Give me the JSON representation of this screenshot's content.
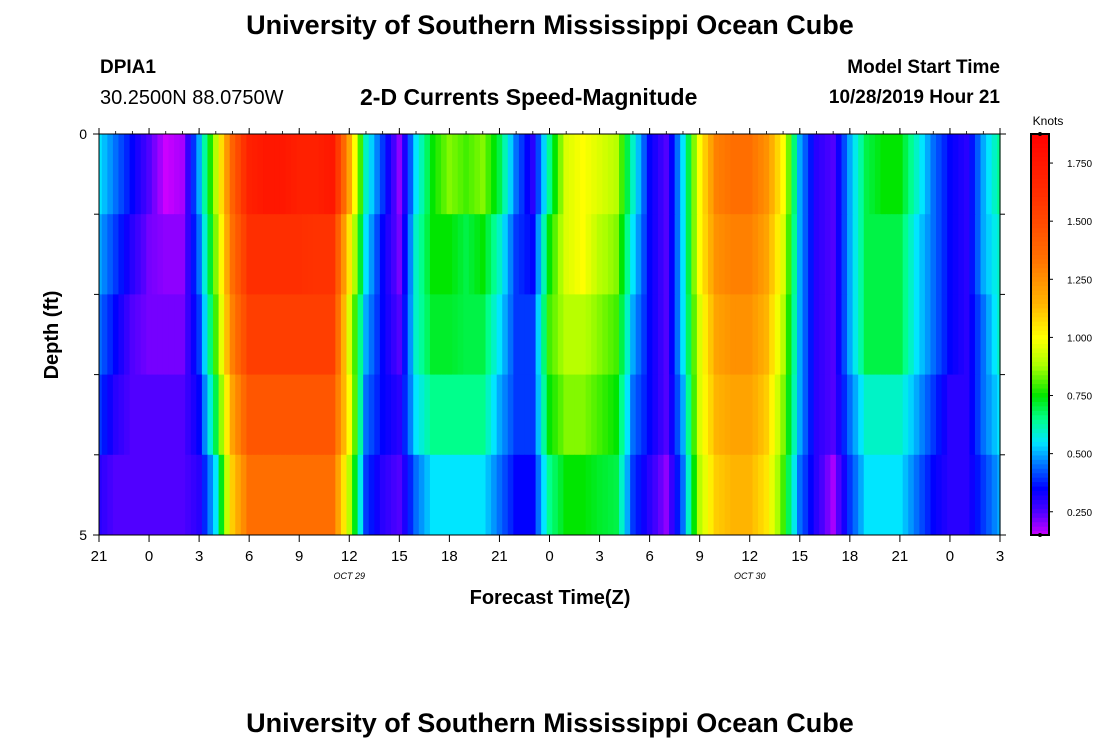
{
  "header": {
    "title": "University of Southern Mississippi Ocean Cube",
    "station_id": "DPIA1",
    "coordinates": "30.2500N 88.0750W",
    "subtitle": "2-D Currents Speed-Magnitude",
    "model_start_label": "Model Start Time",
    "model_start_value": "10/28/2019 Hour 21"
  },
  "footer": {
    "title": "University of Southern Mississippi Ocean Cube"
  },
  "chart_data": {
    "type": "heatmap",
    "xlabel": "Forecast Time(Z)",
    "ylabel": "Depth (ft)",
    "x_hours": [
      0,
      1,
      2,
      3,
      4,
      5,
      6,
      7,
      8,
      9,
      10,
      11,
      12,
      13,
      14,
      15,
      16,
      17,
      18,
      19,
      20,
      21,
      22,
      23,
      24,
      25,
      26,
      27,
      28,
      29,
      30,
      31,
      32,
      33,
      34,
      35,
      36,
      37,
      38,
      39,
      40,
      41,
      42,
      43,
      44,
      45,
      46,
      47,
      48,
      49,
      50,
      51,
      52,
      53,
      54
    ],
    "x_range": [
      0,
      54
    ],
    "x_ticks": [
      {
        "hour": 0,
        "label": "21"
      },
      {
        "hour": 3,
        "label": "0"
      },
      {
        "hour": 6,
        "label": "3"
      },
      {
        "hour": 9,
        "label": "6"
      },
      {
        "hour": 12,
        "label": "9"
      },
      {
        "hour": 15,
        "label": "12"
      },
      {
        "hour": 18,
        "label": "15"
      },
      {
        "hour": 21,
        "label": "18"
      },
      {
        "hour": 24,
        "label": "21"
      },
      {
        "hour": 27,
        "label": "0"
      },
      {
        "hour": 30,
        "label": "3"
      },
      {
        "hour": 33,
        "label": "6"
      },
      {
        "hour": 36,
        "label": "9"
      },
      {
        "hour": 39,
        "label": "12"
      },
      {
        "hour": 42,
        "label": "15"
      },
      {
        "hour": 45,
        "label": "18"
      },
      {
        "hour": 48,
        "label": "21"
      },
      {
        "hour": 51,
        "label": "0"
      },
      {
        "hour": 54,
        "label": "3"
      }
    ],
    "date_labels": [
      {
        "hour": 15,
        "label": "OCT 29"
      },
      {
        "hour": 39,
        "label": "OCT 30"
      }
    ],
    "depth_range": [
      0,
      5
    ],
    "depth_ticks": [
      {
        "depth": 0,
        "label": "0"
      },
      {
        "depth": 5,
        "label": "5"
      }
    ],
    "depth_minor_ticks": [
      1,
      2,
      3,
      4
    ],
    "depth_rows": [
      0,
      1,
      2,
      3,
      4
    ],
    "speed_knots": [
      [
        0.55,
        0.45,
        0.35,
        0.25,
        0.15,
        0.18,
        0.5,
        0.9,
        1.4,
        1.7,
        1.75,
        1.75,
        1.7,
        1.7,
        1.75,
        1.2,
        0.6,
        0.4,
        0.2,
        0.55,
        0.75,
        0.85,
        0.8,
        0.85,
        0.7,
        0.45,
        0.3,
        0.65,
        0.95,
        1.0,
        0.95,
        0.9,
        0.6,
        0.35,
        0.25,
        0.55,
        1.0,
        1.3,
        1.35,
        1.35,
        1.25,
        1.0,
        0.5,
        0.3,
        0.25,
        0.5,
        0.7,
        0.75,
        0.75,
        0.6,
        0.45,
        0.35,
        0.3,
        0.5,
        0.65
      ],
      [
        0.5,
        0.4,
        0.3,
        0.22,
        0.2,
        0.2,
        0.45,
        0.85,
        1.35,
        1.62,
        1.62,
        1.62,
        1.62,
        1.6,
        1.6,
        1.05,
        0.55,
        0.35,
        0.22,
        0.6,
        0.75,
        0.75,
        0.7,
        0.75,
        0.6,
        0.4,
        0.35,
        0.75,
        0.95,
        1.0,
        0.9,
        0.85,
        0.55,
        0.35,
        0.25,
        0.55,
        1.0,
        1.25,
        1.3,
        1.3,
        1.2,
        0.95,
        0.5,
        0.3,
        0.25,
        0.5,
        0.7,
        0.7,
        0.7,
        0.55,
        0.45,
        0.35,
        0.3,
        0.5,
        0.6
      ],
      [
        0.45,
        0.35,
        0.25,
        0.22,
        0.22,
        0.22,
        0.4,
        0.8,
        1.3,
        1.55,
        1.55,
        1.55,
        1.55,
        1.55,
        1.55,
        0.95,
        0.5,
        0.35,
        0.25,
        0.6,
        0.72,
        0.72,
        0.7,
        0.7,
        0.55,
        0.4,
        0.4,
        0.8,
        0.9,
        0.9,
        0.85,
        0.8,
        0.5,
        0.35,
        0.25,
        0.55,
        0.95,
        1.2,
        1.25,
        1.25,
        1.15,
        0.9,
        0.5,
        0.3,
        0.25,
        0.5,
        0.7,
        0.7,
        0.7,
        0.55,
        0.45,
        0.35,
        0.3,
        0.45,
        0.6
      ],
      [
        0.4,
        0.3,
        0.25,
        0.25,
        0.25,
        0.25,
        0.35,
        0.7,
        1.2,
        1.45,
        1.45,
        1.45,
        1.45,
        1.45,
        1.45,
        1.0,
        0.45,
        0.35,
        0.3,
        0.55,
        0.65,
        0.65,
        0.65,
        0.65,
        0.5,
        0.4,
        0.4,
        0.75,
        0.85,
        0.85,
        0.8,
        0.75,
        0.45,
        0.35,
        0.25,
        0.5,
        0.95,
        1.15,
        1.2,
        1.2,
        1.1,
        0.85,
        0.5,
        0.3,
        0.25,
        0.45,
        0.6,
        0.6,
        0.6,
        0.5,
        0.4,
        0.3,
        0.3,
        0.45,
        0.55
      ],
      [
        0.3,
        0.25,
        0.25,
        0.25,
        0.25,
        0.25,
        0.3,
        0.55,
        1.1,
        1.35,
        1.35,
        1.35,
        1.35,
        1.35,
        1.35,
        0.9,
        0.4,
        0.3,
        0.25,
        0.45,
        0.55,
        0.55,
        0.55,
        0.55,
        0.45,
        0.35,
        0.35,
        0.65,
        0.75,
        0.75,
        0.72,
        0.7,
        0.4,
        0.3,
        0.2,
        0.45,
        0.9,
        1.1,
        1.15,
        1.15,
        1.05,
        0.8,
        0.45,
        0.3,
        0.18,
        0.4,
        0.55,
        0.55,
        0.55,
        0.45,
        0.35,
        0.3,
        0.3,
        0.4,
        0.5
      ]
    ],
    "colorbar": {
      "unit": "Knots",
      "min": 0.15,
      "max": 1.875,
      "ticks": [
        "0.250",
        "0.500",
        "0.750",
        "1.000",
        "1.250",
        "1.500",
        "1.750"
      ],
      "tick_values": [
        0.25,
        0.5,
        0.75,
        1.0,
        1.25,
        1.5,
        1.75
      ]
    }
  }
}
